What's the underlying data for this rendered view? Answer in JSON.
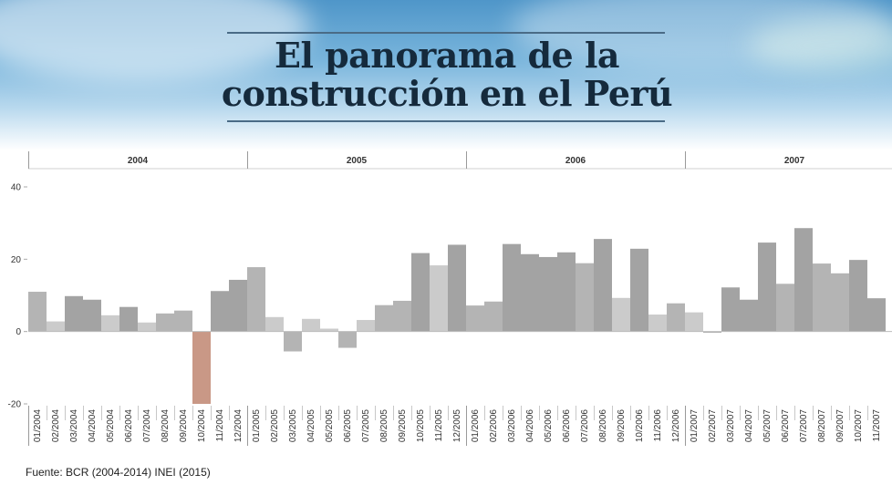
{
  "header": {
    "title_line1": "El panorama de la",
    "title_line2": "construcción en el Perú"
  },
  "source": "Fuente: BCR (2004-2014) INEI (2015)",
  "colors": {
    "bar_dark": "#a3a3a3",
    "bar_mid": "#b4b4b4",
    "bar_light": "#cbcbcb",
    "bar_negative": "#c99886",
    "title": "#152a3c"
  },
  "chart_data": {
    "type": "bar",
    "title": "El panorama de la construcción en el Perú",
    "xlabel": "",
    "ylabel": "",
    "ylim": [
      -20,
      40
    ],
    "yticks": [
      -20,
      0,
      20,
      40
    ],
    "grid": false,
    "year_groups": [
      "2004",
      "2005",
      "2006",
      "2007"
    ],
    "categories": [
      "01/2004",
      "02/2004",
      "03/2004",
      "04/2004",
      "05/2004",
      "06/2004",
      "07/2004",
      "08/2004",
      "09/2004",
      "10/2004",
      "11/2004",
      "12/2004",
      "01/2005",
      "02/2005",
      "03/2005",
      "04/2005",
      "05/2005",
      "06/2005",
      "07/2005",
      "08/2005",
      "09/2005",
      "10/2005",
      "11/2005",
      "12/2005",
      "01/2006",
      "02/2006",
      "03/2006",
      "04/2006",
      "05/2006",
      "06/2006",
      "07/2006",
      "08/2006",
      "09/2006",
      "10/2006",
      "11/2006",
      "12/2006",
      "01/2007",
      "02/2007",
      "03/2007",
      "04/2007",
      "05/2007",
      "06/2007",
      "07/2007",
      "08/2007",
      "09/2007",
      "10/2007",
      "11/2007"
    ],
    "values": [
      11.0,
      2.8,
      9.8,
      8.8,
      4.5,
      6.8,
      2.5,
      5.0,
      5.8,
      -20.0,
      11.2,
      14.3,
      17.8,
      4.0,
      -5.5,
      3.5,
      0.8,
      -4.5,
      3.2,
      7.3,
      8.5,
      21.7,
      18.3,
      24.0,
      7.2,
      8.3,
      24.2,
      21.4,
      20.6,
      21.9,
      18.9,
      25.6,
      9.3,
      22.9,
      4.7,
      7.8,
      5.3,
      -0.3,
      12.2,
      8.8,
      24.6,
      13.2,
      28.6,
      18.8,
      16.1,
      19.8,
      9.2
    ],
    "shades": [
      "mid",
      "light",
      "dark",
      "dark",
      "light",
      "dark",
      "light",
      "mid",
      "mid",
      "neg",
      "dark",
      "dark",
      "mid",
      "light",
      "mid",
      "light",
      "light",
      "mid",
      "light",
      "mid",
      "mid",
      "dark",
      "light",
      "dark",
      "mid",
      "mid",
      "dark",
      "dark",
      "dark",
      "dark",
      "mid",
      "dark",
      "light",
      "dark",
      "light",
      "mid",
      "light",
      "dark",
      "dark",
      "dark",
      "dark",
      "mid",
      "dark",
      "mid",
      "mid",
      "dark",
      "dark"
    ]
  }
}
